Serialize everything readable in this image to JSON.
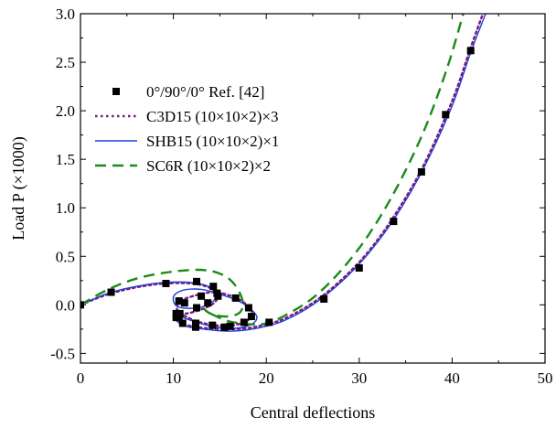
{
  "chart_data": {
    "type": "line",
    "xlabel": "Central deflections",
    "ylabel": "Load P (×1000)",
    "xlim": [
      0,
      50
    ],
    "ylim": [
      -0.6,
      3.0
    ],
    "x_ticks": [
      0,
      10,
      20,
      30,
      40,
      50
    ],
    "y_ticks": [
      -0.5,
      0.0,
      0.5,
      1.0,
      1.5,
      2.0,
      2.5,
      3.0
    ],
    "x_tick_labels": [
      "0",
      "10",
      "20",
      "30",
      "40",
      "50"
    ],
    "y_tick_labels": [
      "-0.5",
      "0.0",
      "0.5",
      "1.0",
      "1.5",
      "2.0",
      "2.5",
      "3.0"
    ],
    "grid": false,
    "legend_position": "top-left",
    "series": [
      {
        "name": "0°/90°/0°  Ref. [42]",
        "style": "markers",
        "marker": "square",
        "color": "#000000",
        "x": [
          0.0,
          3.3,
          9.2,
          12.5,
          14.3,
          14.8,
          13.7,
          12.5,
          10.6,
          10.3,
          10.6,
          11.2,
          13.0,
          14.7,
          16.7,
          18.1,
          18.4,
          17.6,
          16.1,
          14.2,
          12.4,
          10.7,
          10.3,
          11.0,
          12.4,
          15.5,
          20.3,
          26.2,
          30.0,
          33.7,
          36.7,
          39.3,
          42.0
        ],
        "y": [
          0.0,
          0.13,
          0.22,
          0.24,
          0.19,
          0.09,
          0.02,
          -0.03,
          -0.12,
          -0.09,
          0.04,
          0.02,
          0.09,
          0.12,
          0.07,
          -0.03,
          -0.12,
          -0.18,
          -0.22,
          -0.21,
          -0.19,
          -0.09,
          -0.13,
          -0.19,
          -0.23,
          -0.23,
          -0.18,
          0.06,
          0.38,
          0.86,
          1.37,
          1.96,
          2.62
        ]
      },
      {
        "name": "C3D15 (10×10×2)×3",
        "style": "dotted",
        "color": "#7b1a7b",
        "x": [
          0,
          3,
          6,
          9,
          12,
          13.8,
          14.7,
          14.5,
          13.2,
          11.3,
          10.4,
          10.8,
          12.5,
          14.5,
          16.5,
          17.9,
          18.5,
          18.0,
          16.5,
          14.5,
          12.5,
          11.0,
          10.6,
          11.5,
          13.5,
          16,
          18,
          20,
          22,
          25,
          28,
          31,
          34,
          37,
          40,
          42,
          43.5
        ],
        "y": [
          0.0,
          0.11,
          0.18,
          0.22,
          0.22,
          0.18,
          0.11,
          0.03,
          -0.04,
          -0.09,
          -0.05,
          0.04,
          0.1,
          0.13,
          0.08,
          0.0,
          -0.09,
          -0.16,
          -0.21,
          -0.21,
          -0.17,
          -0.11,
          -0.16,
          -0.21,
          -0.24,
          -0.25,
          -0.24,
          -0.2,
          -0.14,
          0.02,
          0.25,
          0.55,
          0.95,
          1.45,
          2.1,
          2.65,
          3.05
        ]
      },
      {
        "name": "SHB15 (10×10×2)×1",
        "style": "solid",
        "color": "#1f3fd6",
        "x": [
          0,
          3,
          6,
          9,
          12,
          13.8,
          14.6,
          14.3,
          12.7,
          10.5,
          10.0,
          11.0,
          13.0,
          15.0,
          17.0,
          18.4,
          19.0,
          18.4,
          16.8,
          14.7,
          12.5,
          10.6,
          10.2,
          11.3,
          13.3,
          15.5,
          17.8,
          20,
          22,
          25,
          28,
          31,
          34,
          37,
          40,
          42,
          43.8
        ],
        "y": [
          0.0,
          0.12,
          0.19,
          0.23,
          0.23,
          0.19,
          0.12,
          0.04,
          -0.03,
          -0.02,
          0.08,
          0.15,
          0.16,
          0.11,
          0.04,
          -0.05,
          -0.13,
          -0.2,
          -0.24,
          -0.23,
          -0.18,
          -0.12,
          -0.15,
          -0.22,
          -0.25,
          -0.27,
          -0.26,
          -0.22,
          -0.16,
          0.0,
          0.23,
          0.53,
          0.92,
          1.42,
          2.05,
          2.6,
          3.05
        ]
      },
      {
        "name": "SC6R   (10×10×2)×2",
        "style": "dashed",
        "color": "#1a8a1a",
        "x": [
          0,
          3,
          6,
          9,
          12,
          14,
          15.5,
          16.5,
          17.2,
          17.5,
          17.0,
          15.5,
          14.0,
          13.3,
          14.0,
          16.0,
          18.3,
          20,
          22,
          25,
          28,
          31,
          34,
          37,
          39.5,
          41.2
        ],
        "y": [
          0.0,
          0.16,
          0.27,
          0.33,
          0.36,
          0.35,
          0.3,
          0.22,
          0.11,
          0.0,
          -0.09,
          -0.12,
          -0.09,
          -0.04,
          -0.09,
          -0.17,
          -0.2,
          -0.19,
          -0.11,
          0.07,
          0.35,
          0.72,
          1.2,
          1.8,
          2.45,
          3.0
        ]
      }
    ]
  }
}
